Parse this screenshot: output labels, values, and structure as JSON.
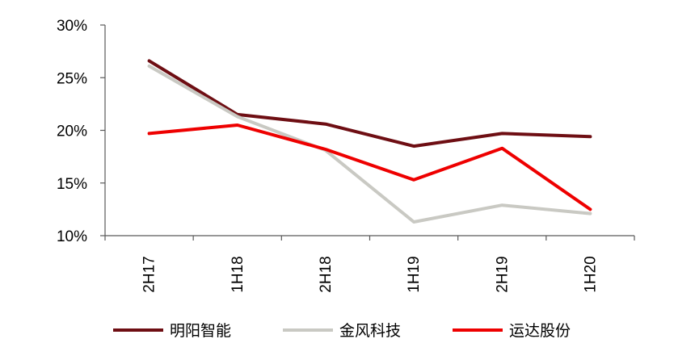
{
  "chart_data": {
    "type": "line",
    "title": "",
    "xlabel": "",
    "ylabel": "",
    "categories": [
      "2H17",
      "1H18",
      "2H18",
      "1H19",
      "2H19",
      "1H20"
    ],
    "ylim": [
      10,
      30
    ],
    "yticks": [
      10,
      15,
      20,
      25,
      30
    ],
    "ytick_labels": [
      "10%",
      "15%",
      "20%",
      "25%",
      "30%"
    ],
    "grid": false,
    "legend_position": "bottom",
    "series": [
      {
        "name": "明阳智能",
        "color": "#6e0e13",
        "values": [
          26.6,
          21.5,
          20.6,
          18.5,
          19.7,
          19.4
        ]
      },
      {
        "name": "金风科技",
        "color": "#c9c9c3",
        "values": [
          26.1,
          21.3,
          18.1,
          11.3,
          12.9,
          12.1
        ]
      },
      {
        "name": "运达股份",
        "color": "#ee0000",
        "values": [
          19.7,
          20.5,
          18.2,
          15.3,
          18.3,
          12.5
        ]
      }
    ]
  }
}
